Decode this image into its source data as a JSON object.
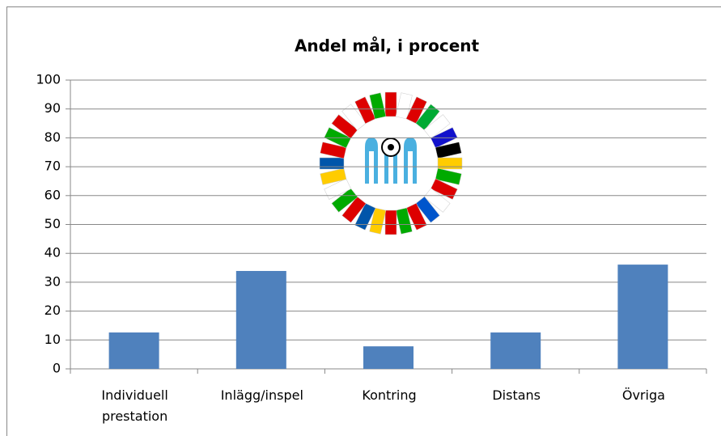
{
  "chart_data": {
    "type": "bar",
    "title": "Andel mål, i procent",
    "categories": [
      "Individuell prestation",
      "Inlägg/inspel",
      "Kontring",
      "Distans",
      "Övriga"
    ],
    "values": [
      12.6,
      33.9,
      7.8,
      12.6,
      36.1
    ],
    "color": "#4f81bd",
    "ylim": [
      0,
      100
    ],
    "yticks": [
      0,
      10,
      20,
      30,
      40,
      50,
      60,
      70,
      80,
      90,
      100
    ],
    "grid": true
  }
}
